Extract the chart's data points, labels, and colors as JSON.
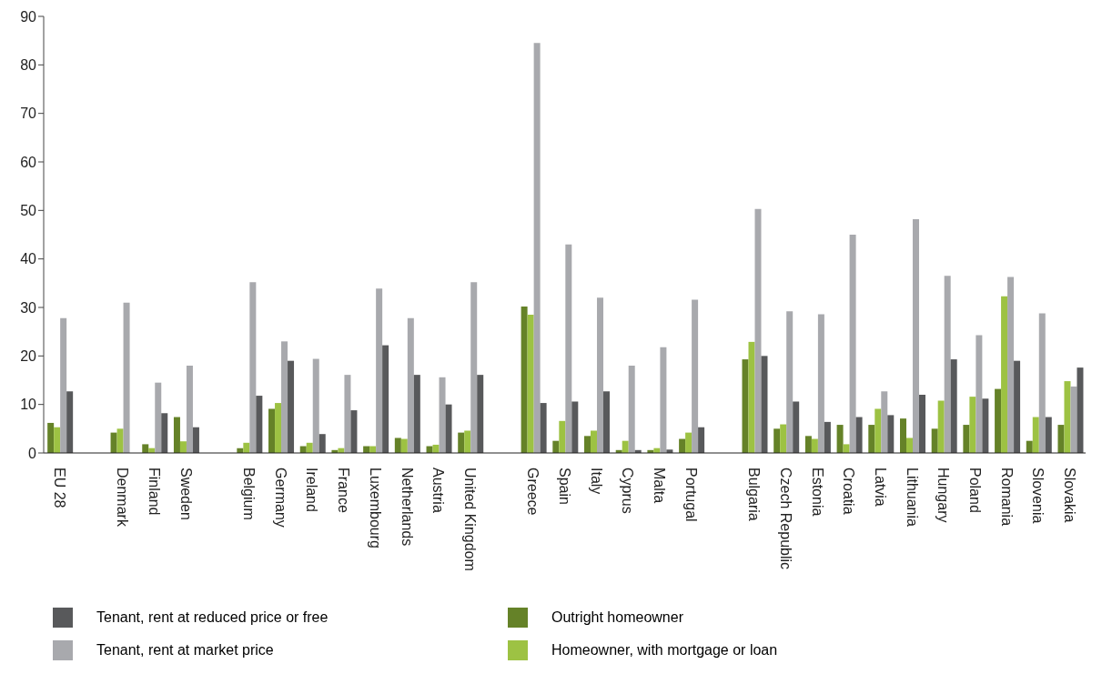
{
  "chart_data": {
    "type": "bar",
    "categories": [
      "EU 28",
      null,
      "Denmark",
      "Finland",
      "Sweden",
      null,
      "Belgium",
      "Germany",
      "Ireland",
      "France",
      "Luxembourg",
      "Netherlands",
      "Austria",
      "United Kingdom",
      null,
      "Greece",
      "Spain",
      "Italy",
      "Cyprus",
      "Malta",
      "Portugal",
      null,
      "Bulgaria",
      "Czech Republic",
      "Estonia",
      "Croatia",
      "Latvia",
      "Lithuania",
      "Hungary",
      "Poland",
      "Romania",
      "Slovenia",
      "Slovakia"
    ],
    "series": [
      {
        "name": "Outright homeowner",
        "color": "#658228",
        "values": [
          6.2,
          null,
          4.2,
          1.8,
          7.4,
          null,
          1,
          9.1,
          1.4,
          0.6,
          1.4,
          3.1,
          1.4,
          4.2,
          null,
          30.2,
          2.5,
          3.5,
          0.6,
          0.6,
          2.9,
          null,
          19.3,
          5,
          3.5,
          5.8,
          5.8,
          7.1,
          5,
          5.8,
          13.2,
          2.5,
          5.8
        ]
      },
      {
        "name": "Homeowner, with mortgage or loan",
        "color": "#9dc243",
        "values": [
          5.3,
          null,
          5,
          1,
          2.4,
          null,
          2.1,
          10.3,
          2.1,
          1,
          1.4,
          2.9,
          1.7,
          4.6,
          null,
          28.5,
          6.6,
          4.6,
          2.5,
          1,
          4.2,
          null,
          22.9,
          5.9,
          2.9,
          1.8,
          9.1,
          3.1,
          10.8,
          11.6,
          32.3,
          7.4,
          14.8
        ]
      },
      {
        "name": "Tenant, rent at market price",
        "color": "#a8a9ad",
        "values": [
          27.8,
          null,
          31,
          14.5,
          18,
          null,
          35.2,
          23,
          19.4,
          16.1,
          33.9,
          27.8,
          15.6,
          35.2,
          null,
          84.5,
          43,
          32,
          18,
          21.8,
          31.6,
          null,
          50.3,
          29.2,
          28.6,
          45,
          12.7,
          48.2,
          36.5,
          24.3,
          36.3,
          28.8,
          13.7
        ]
      },
      {
        "name": "Tenant, rent at reduced price or free",
        "color": "#58595b",
        "values": [
          12.7,
          null,
          null,
          8.2,
          5.3,
          null,
          11.8,
          19,
          3.9,
          8.8,
          22.2,
          16.1,
          10,
          16.1,
          null,
          10.3,
          10.6,
          12.7,
          0.6,
          0.7,
          5.3,
          null,
          20,
          10.6,
          6.4,
          7.4,
          7.8,
          12,
          19.3,
          11.2,
          19,
          7.4,
          17.6
        ]
      }
    ],
    "ylim": [
      0,
      90
    ],
    "yticks": [
      0,
      10,
      20,
      30,
      40,
      50,
      60,
      70,
      80,
      90
    ],
    "grid": false,
    "legend": "bottom"
  }
}
